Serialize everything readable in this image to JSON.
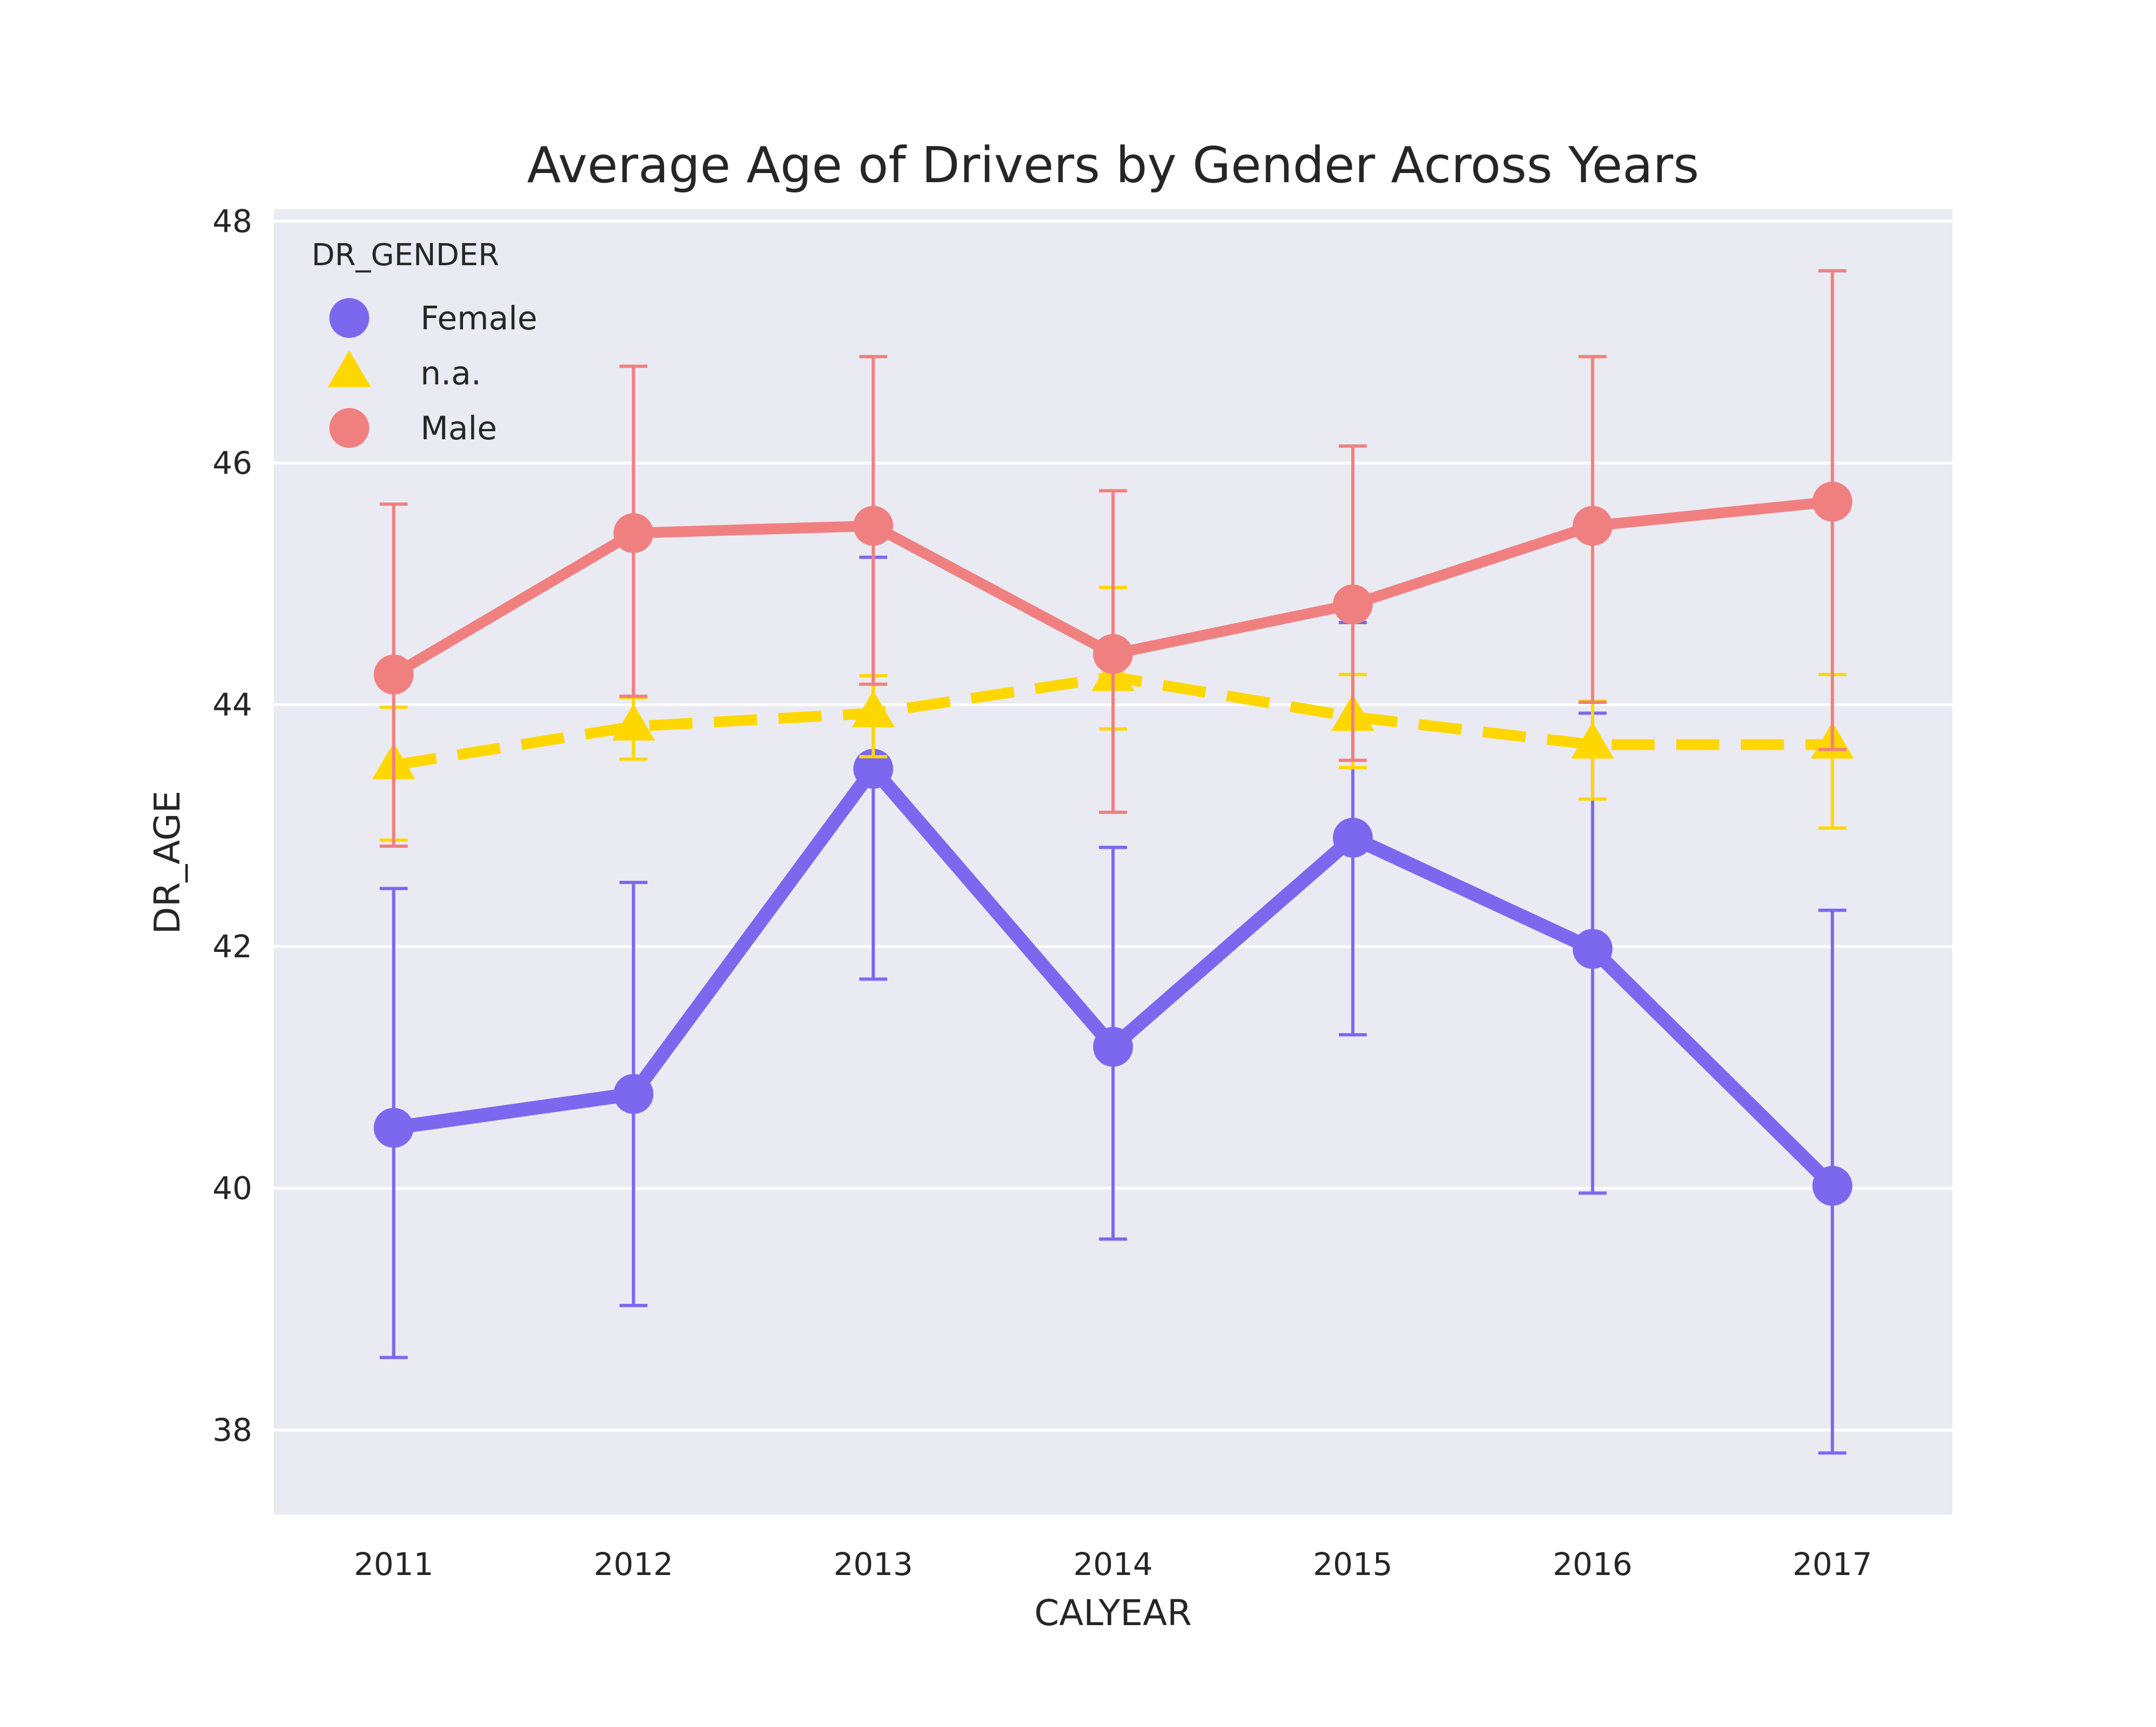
{
  "chart_data": {
    "type": "line",
    "title": "Average Age of Drivers by Gender Across Years",
    "xlabel": "CALYEAR",
    "ylabel": "DR_AGE",
    "categories": [
      "2011",
      "2012",
      "2013",
      "2014",
      "2015",
      "2016",
      "2017"
    ],
    "ylim": [
      37.3,
      48.1
    ],
    "yticks": [
      38,
      40,
      42,
      44,
      46,
      48
    ],
    "grid": true,
    "legend": {
      "title": "DR_GENDER",
      "placement": "top-left"
    },
    "series": [
      {
        "name": "Female",
        "color": "#7b68ee",
        "marker": "circle",
        "linestyle": "solid",
        "values": [
          40.5,
          40.78,
          43.47,
          41.17,
          42.9,
          41.98,
          40.02
        ],
        "err_low": [
          38.6,
          39.03,
          41.73,
          39.58,
          41.27,
          39.96,
          37.81
        ],
        "err_high": [
          42.48,
          42.53,
          45.22,
          42.82,
          44.68,
          43.93,
          42.3
        ]
      },
      {
        "name": "n.a.",
        "color": "#ffd700",
        "marker": "triangle",
        "linestyle": "dashed",
        "values": [
          43.5,
          43.82,
          43.93,
          44.23,
          43.9,
          43.67,
          43.67
        ],
        "err_low": [
          42.88,
          43.55,
          43.57,
          43.8,
          43.48,
          43.22,
          42.98
        ],
        "err_high": [
          43.98,
          44.06,
          44.24,
          44.97,
          44.25,
          44.03,
          44.25
        ]
      },
      {
        "name": "Male",
        "color": "#f08080",
        "marker": "circle",
        "linestyle": "solid",
        "values": [
          44.25,
          45.42,
          45.48,
          44.42,
          44.83,
          45.48,
          45.68
        ],
        "err_low": [
          42.83,
          44.07,
          44.17,
          43.11,
          43.54,
          44.02,
          43.63
        ],
        "err_high": [
          45.66,
          46.8,
          46.88,
          45.77,
          46.14,
          46.88,
          47.59
        ]
      }
    ]
  }
}
